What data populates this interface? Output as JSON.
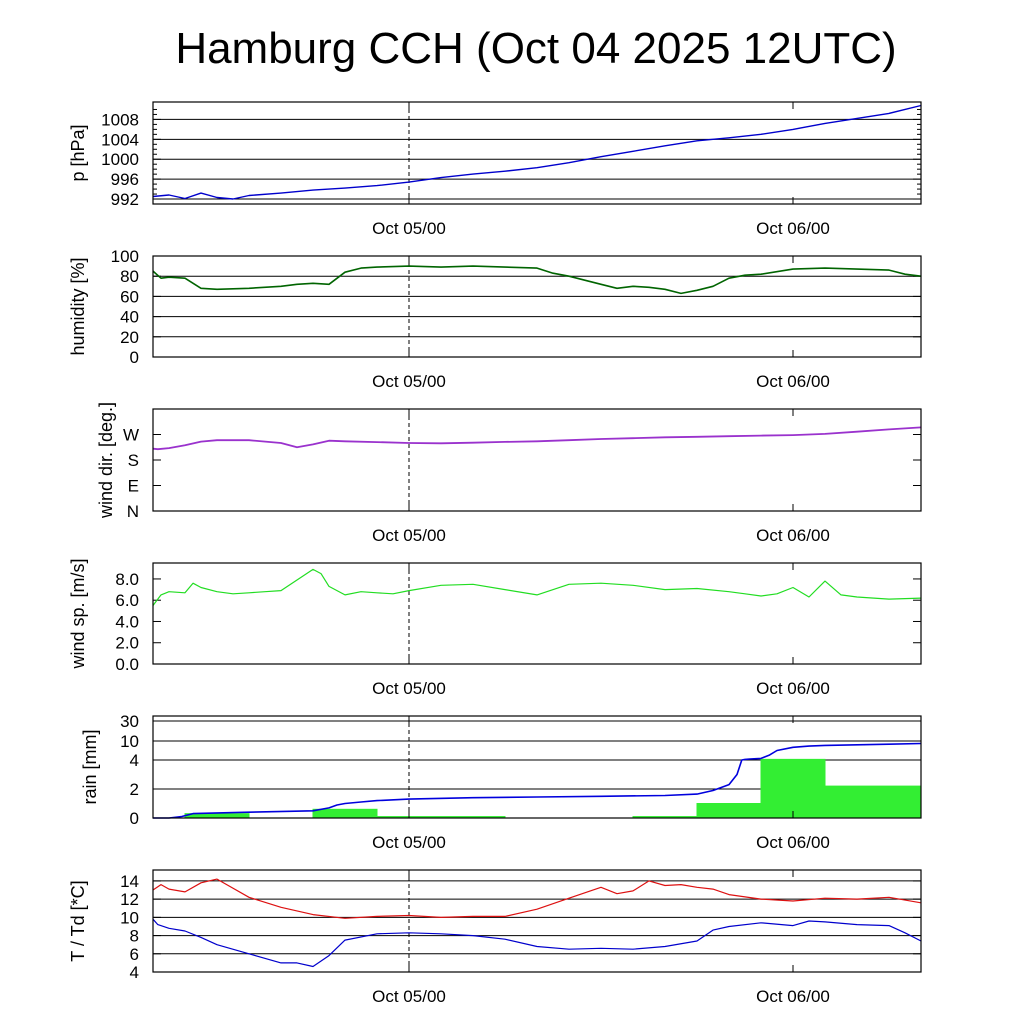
{
  "title": "Hamburg CCH (Oct 04 2025 12UTC)",
  "colors": {
    "pressure": "#0000cc",
    "humidity": "#006400",
    "wind_dir": "#9a32cd",
    "wind_speed": "#22dd22",
    "rain_bar": "#33ee33",
    "rain_cum": "#0000dd",
    "temperature": "#dd1111",
    "dewpoint": "#0000cc"
  },
  "chart_data": [
    {
      "type": "line",
      "ylabel": "p [hPa]",
      "ylim": [
        991,
        1011.5
      ],
      "yticks": [
        992,
        996,
        1000,
        1004,
        1008
      ],
      "ytick_labels": [
        "992",
        "996",
        "1000",
        "1004",
        "1008"
      ],
      "grid_lines": [
        992,
        996,
        1000,
        1004,
        1008
      ],
      "xtick_labels": [
        "Oct 05/00",
        "Oct 06/00"
      ],
      "series": [
        {
          "x": [
            0,
            1,
            2,
            3,
            4,
            5,
            6,
            8,
            10,
            12,
            14,
            16,
            18,
            20,
            22,
            24,
            26,
            28,
            30,
            32,
            34,
            36,
            38,
            40,
            42,
            44,
            46,
            48
          ],
          "y": [
            992.5,
            992.8,
            992.1,
            993.2,
            992.3,
            992.0,
            992.7,
            993.2,
            993.8,
            994.2,
            994.7,
            995.4,
            996.3,
            997.0,
            997.6,
            998.3,
            999.3,
            1000.5,
            1001.6,
            1002.7,
            1003.7,
            1004.3,
            1005.0,
            1006.0,
            1007.2,
            1008.2,
            1009.2,
            1010.8
          ]
        }
      ]
    },
    {
      "type": "line",
      "ylabel": "humidity [%]",
      "ylim": [
        0,
        100
      ],
      "yticks": [
        0,
        20,
        40,
        60,
        80,
        100
      ],
      "ytick_labels": [
        "0",
        "20",
        "40",
        "60",
        "80",
        "100"
      ],
      "grid_lines": [
        20,
        40,
        60,
        80
      ],
      "xtick_labels": [
        "Oct 05/00",
        "Oct 06/00"
      ],
      "series": [
        {
          "x": [
            0,
            0.5,
            1,
            2,
            3,
            4,
            6,
            8,
            9,
            10,
            11,
            12,
            13,
            14,
            16,
            18,
            20,
            22,
            24,
            25,
            26,
            28,
            29,
            30,
            31,
            32,
            33,
            34,
            35,
            36,
            37,
            38,
            40,
            42,
            44,
            46,
            47,
            48
          ],
          "y": [
            85,
            78,
            79,
            78,
            68,
            67,
            68,
            70,
            72,
            73,
            72,
            84,
            88,
            89,
            90,
            89,
            90,
            89,
            88,
            83,
            80,
            72,
            68,
            70,
            69,
            67,
            63,
            66,
            70,
            78,
            81,
            82,
            87,
            88,
            87,
            86,
            82,
            80
          ]
        }
      ]
    },
    {
      "type": "line",
      "ylabel": "wind dir. [deg.]",
      "ylim": [
        0,
        360
      ],
      "yticks": [
        0,
        90,
        180,
        270
      ],
      "ytick_labels": [
        "N",
        "E",
        "S",
        "W"
      ],
      "grid_lines": [],
      "xtick_labels": [
        "Oct 05/00",
        "Oct 06/00"
      ],
      "series": [
        {
          "x": [
            0,
            0.3,
            1,
            2,
            3,
            4,
            6,
            8,
            9,
            10,
            11,
            12,
            14,
            16,
            18,
            20,
            22,
            24,
            26,
            28,
            30,
            32,
            34,
            36,
            38,
            40,
            42,
            44,
            46,
            48
          ],
          "y": [
            220,
            218,
            222,
            232,
            245,
            250,
            250,
            240,
            225,
            235,
            248,
            246,
            243,
            240,
            239,
            241,
            244,
            246,
            250,
            254,
            257,
            260,
            262,
            264,
            266,
            268,
            272,
            280,
            288,
            295
          ]
        }
      ]
    },
    {
      "type": "line",
      "ylabel": "wind sp. [m/s]",
      "ylim": [
        0,
        9.5
      ],
      "yticks": [
        0,
        2,
        4,
        6,
        8
      ],
      "ytick_labels": [
        "0.0",
        "2.0",
        "4.0",
        "6.0",
        "8.0"
      ],
      "grid_lines": [],
      "xtick_labels": [
        "Oct 05/00",
        "Oct 06/00"
      ],
      "series": [
        {
          "x": [
            0,
            0.5,
            1,
            2,
            2.5,
            3,
            4,
            5,
            6,
            7,
            8,
            9,
            10,
            10.5,
            11,
            12,
            13,
            14,
            15,
            16,
            18,
            20,
            22,
            24,
            26,
            28,
            30,
            32,
            34,
            36,
            37,
            38,
            39,
            40,
            41,
            42,
            43,
            44,
            46,
            48
          ],
          "y": [
            5.5,
            6.5,
            6.8,
            6.7,
            7.6,
            7.2,
            6.8,
            6.6,
            6.7,
            6.8,
            6.9,
            7.9,
            8.9,
            8.5,
            7.3,
            6.5,
            6.8,
            6.7,
            6.6,
            6.9,
            7.4,
            7.5,
            7.0,
            6.5,
            7.5,
            7.6,
            7.4,
            7.0,
            7.1,
            6.8,
            6.6,
            6.4,
            6.6,
            7.2,
            6.3,
            7.8,
            6.5,
            6.3,
            6.1,
            6.2
          ]
        }
      ]
    },
    {
      "type": "bar",
      "ylabel": "rain [mm]",
      "ylim": [
        0,
        34
      ],
      "yticks": [
        0,
        2,
        4,
        10,
        30
      ],
      "ytick_labels": [
        "0",
        "2",
        "4",
        "10",
        "30"
      ],
      "grid_lines": [
        2,
        4,
        10,
        30
      ],
      "xtick_labels": [
        "Oct 05/00",
        "Oct 06/00"
      ],
      "bars": [
        {
          "x0": 2,
          "x1": 6,
          "value": 0.3
        },
        {
          "x0": 10,
          "x1": 14,
          "value": 0.6
        },
        {
          "x0": 14,
          "x1": 22,
          "value": 0.1
        },
        {
          "x0": 30,
          "x1": 34,
          "value": 0.1
        },
        {
          "x0": 34,
          "x1": 38,
          "value": 1.0
        },
        {
          "x0": 38,
          "x1": 42,
          "value": 4.2
        },
        {
          "x0": 42,
          "x1": 48,
          "value": 2.2
        }
      ],
      "cumulative": {
        "x": [
          0,
          1,
          1.8,
          2.5,
          6,
          10,
          11,
          11.5,
          12,
          13,
          14,
          16,
          20,
          24,
          28,
          32,
          34,
          35,
          36,
          36.5,
          36.8,
          37,
          37.3,
          37.7,
          38,
          38.5,
          39,
          40,
          41,
          42,
          44,
          46,
          48
        ],
        "y": [
          0,
          0,
          0.1,
          0.3,
          0.4,
          0.5,
          0.7,
          0.9,
          1.0,
          1.1,
          1.2,
          1.3,
          1.4,
          1.45,
          1.5,
          1.55,
          1.65,
          1.9,
          2.3,
          3.0,
          4.0,
          4.2,
          4.3,
          4.4,
          4.5,
          5.5,
          7.0,
          8.0,
          8.4,
          8.6,
          8.8,
          9.0,
          9.2
        ]
      }
    },
    {
      "type": "line",
      "ylabel": "T / Td [*C]",
      "ylim": [
        4,
        15.2
      ],
      "yticks": [
        4,
        6,
        8,
        10,
        12,
        14
      ],
      "ytick_labels": [
        "4",
        "6",
        "8",
        "10",
        "12",
        "14"
      ],
      "grid_lines": [
        6,
        8,
        10,
        12,
        14
      ],
      "xtick_labels": [
        "Oct 05/00",
        "Oct 06/00"
      ],
      "series": [
        {
          "x": [
            0,
            0.5,
            1,
            2,
            3,
            4,
            6,
            8,
            10,
            12,
            14,
            16,
            18,
            20,
            22,
            24,
            26,
            28,
            29,
            30,
            31,
            32,
            33,
            34,
            35,
            36,
            38,
            40,
            42,
            44,
            46,
            48
          ],
          "y": [
            13.0,
            13.6,
            13.1,
            12.8,
            13.8,
            14.2,
            12.2,
            11.1,
            10.3,
            9.9,
            10.1,
            10.2,
            10.0,
            10.1,
            10.1,
            10.9,
            12.1,
            13.3,
            12.6,
            12.9,
            14.0,
            13.5,
            13.6,
            13.3,
            13.1,
            12.5,
            12.0,
            11.8,
            12.1,
            12.0,
            12.2,
            11.6
          ]
        },
        {
          "x": [
            0,
            0.3,
            1,
            2,
            3,
            4,
            6,
            8,
            9,
            10,
            11,
            12,
            14,
            16,
            18,
            20,
            22,
            24,
            26,
            28,
            30,
            32,
            34,
            35,
            36,
            38,
            40,
            41,
            42,
            44,
            46,
            47,
            48
          ],
          "y": [
            9.8,
            9.2,
            8.8,
            8.5,
            7.8,
            7.0,
            6.0,
            5.0,
            5.0,
            4.6,
            5.8,
            7.5,
            8.2,
            8.3,
            8.2,
            8.0,
            7.6,
            6.8,
            6.5,
            6.6,
            6.5,
            6.8,
            7.4,
            8.6,
            9.0,
            9.4,
            9.1,
            9.6,
            9.5,
            9.2,
            9.1,
            8.3,
            7.4
          ]
        }
      ]
    }
  ]
}
